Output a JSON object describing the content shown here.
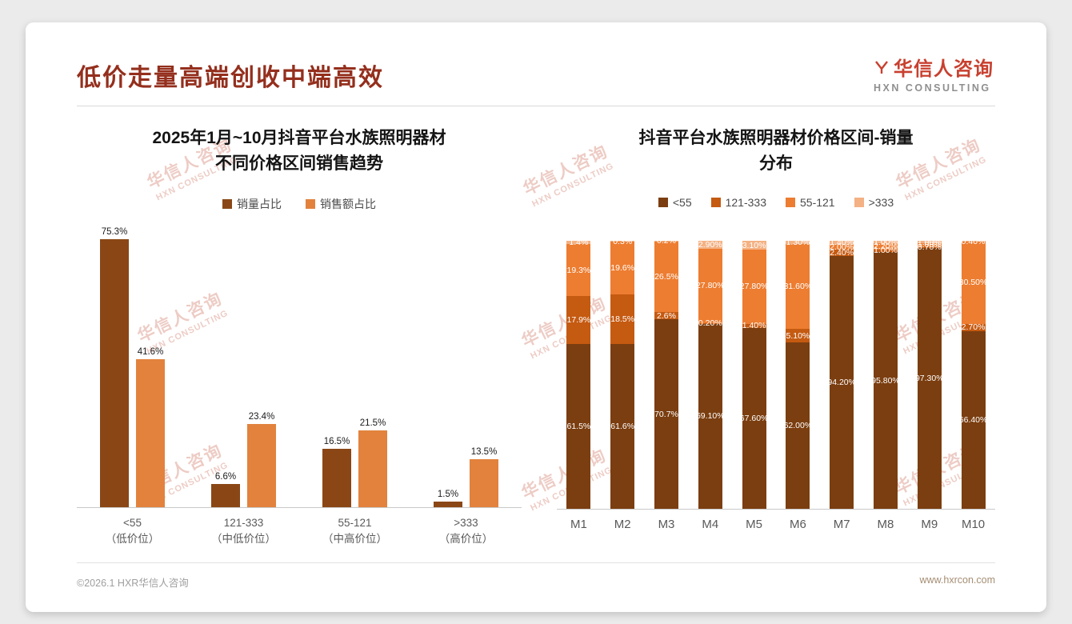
{
  "page": {
    "title": "低价走量高端创收中端高效",
    "logo": {
      "cn": "华信人咨询",
      "en": "HXN CONSULTING"
    },
    "watermark": {
      "cn": "华信人咨询",
      "en": "HXN CONSULTING"
    },
    "footer": {
      "left": "©2026.1 HXR华信人咨询",
      "right": "www.hxrcon.com"
    }
  },
  "colors": {
    "title": "#942F1D",
    "logo_red": "#C8402F",
    "series_volume": "#8A4715",
    "series_revenue": "#E2823D",
    "seg_lt55": "#7B3E10",
    "seg_121_333": "#C55A11",
    "seg_55_121": "#ED7D31",
    "seg_gt333": "#F4B183"
  },
  "chart_data": [
    {
      "type": "bar",
      "title": "2025年1月~10月抖音平台水族照明器材不同价格区间销售趋势",
      "title_lines": [
        "2025年1月~10月抖音平台水族照明器材",
        "不同价格区间销售趋势"
      ],
      "categories": [
        "<55",
        "121-333",
        "55-121",
        ">333"
      ],
      "category_sublabels": [
        "（低价位）",
        "（中低价位）",
        "（中高价位）",
        "（高价位）"
      ],
      "ylim": [
        0,
        80
      ],
      "grid": false,
      "legend_position": "top",
      "value_suffix": "%",
      "series": [
        {
          "name": "销量占比",
          "color": "#8A4715",
          "values": [
            75.3,
            6.6,
            16.5,
            1.5
          ],
          "labels": [
            "75.3%",
            "6.6%",
            "16.5%",
            "1.5%"
          ]
        },
        {
          "name": "销售额占比",
          "color": "#E2823D",
          "values": [
            41.6,
            23.4,
            21.5,
            13.5
          ],
          "labels": [
            "41.6%",
            "23.4%",
            "21.5%",
            "13.5%"
          ]
        }
      ]
    },
    {
      "type": "bar",
      "subtype": "stacked-100",
      "title": "抖音平台水族照明器材价格区间-销量分布",
      "title_lines": [
        "抖音平台水族照明器材价格区间-销量",
        "分布"
      ],
      "categories": [
        "M1",
        "M2",
        "M3",
        "M4",
        "M5",
        "M6",
        "M7",
        "M8",
        "M9",
        "M10"
      ],
      "ylim": [
        0,
        100
      ],
      "grid": false,
      "legend_position": "top",
      "value_suffix": "%",
      "series": [
        {
          "name": "<55",
          "color": "#7B3E10",
          "values": [
            61.5,
            61.6,
            70.7,
            69.1,
            67.6,
            62.0,
            94.2,
            95.8,
            97.3,
            66.4
          ],
          "labels": [
            "61.5%",
            "61.6%",
            "70.7%",
            "69.10%",
            "67.60%",
            "62.00%",
            "94.20%",
            "95.80%",
            "97.30%",
            "66.40%"
          ]
        },
        {
          "name": "121-333",
          "color": "#C55A11",
          "values": [
            17.9,
            18.5,
            2.6,
            0.2,
            1.4,
            5.1,
            2.4,
            1.0,
            0.7,
            2.7
          ],
          "labels": [
            "17.9%",
            "18.5%",
            "2.6%",
            "0.20%",
            "1.40%",
            "5.10%",
            "2.40%",
            "1.00%",
            "0.70%",
            "2.70%"
          ]
        },
        {
          "name": "55-121",
          "color": "#ED7D31",
          "values": [
            19.3,
            19.6,
            26.5,
            27.8,
            27.8,
            31.6,
            2.0,
            2.2,
            1.0,
            30.5
          ],
          "labels": [
            "19.3%",
            "19.6%",
            "26.5%",
            "27.80%",
            "27.80%",
            "31.60%",
            "2.00%",
            "2.20%",
            "1.00%",
            "30.50%"
          ]
        },
        {
          "name": ">333",
          "color": "#F4B183",
          "values": [
            1.4,
            0.3,
            0.2,
            2.9,
            3.1,
            1.3,
            1.4,
            1.0,
            1.0,
            0.4
          ],
          "labels": [
            "1.4%",
            "0.3%",
            "0.2%",
            "2.90%",
            "3.10%",
            "1.30%",
            "1.40%",
            "1.00%",
            "1.00%",
            "0.40%"
          ]
        }
      ]
    }
  ]
}
